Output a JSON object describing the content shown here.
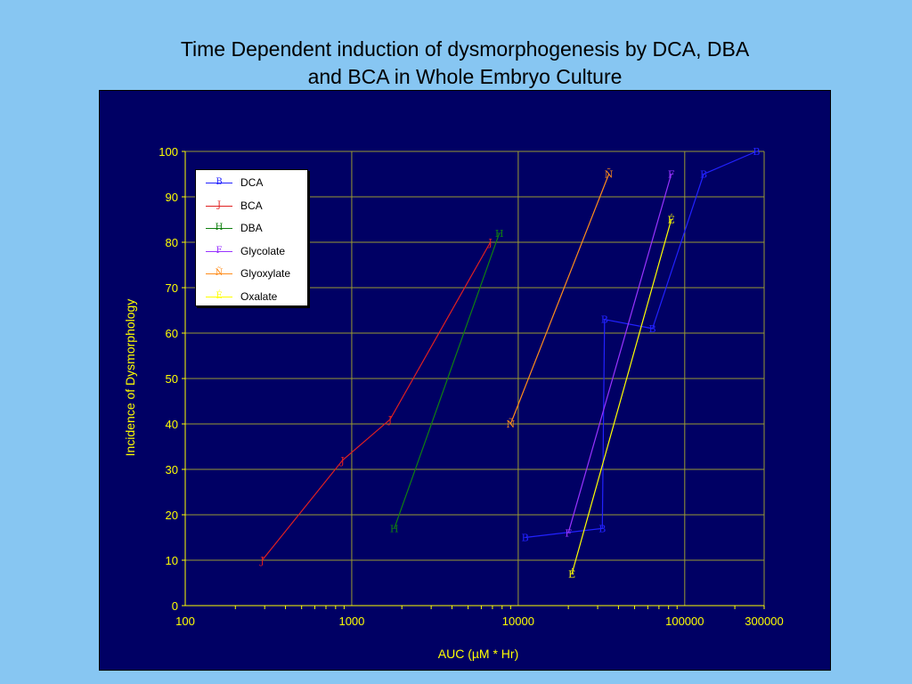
{
  "slide": {
    "title_line1": "Time Dependent induction of dysmorphogenesis by DCA, DBA",
    "title_line2": "and BCA in Whole Embryo Culture"
  },
  "chart_data": {
    "type": "line",
    "xscale": "log",
    "xlim": [
      100,
      300000
    ],
    "ylim": [
      0,
      100
    ],
    "xticks": [
      100,
      1000,
      10000,
      100000,
      300000
    ],
    "xtick_labels": [
      "100",
      "1000",
      "10000",
      "100000",
      "300000"
    ],
    "yticks": [
      0,
      10,
      20,
      30,
      40,
      50,
      60,
      70,
      80,
      90,
      100
    ],
    "ytick_labels": [
      "0",
      "10",
      "20",
      "30",
      "40",
      "50",
      "60",
      "70",
      "80",
      "90",
      "100"
    ],
    "xlabel": "AUC (µM * Hr)",
    "ylabel": "Incidence of Dysmorphology",
    "grid": true,
    "legend_position": "top-left",
    "series": [
      {
        "name": "DCA",
        "color": "#2222ff",
        "marker": "B",
        "x": [
          11000,
          32000,
          33000,
          64000,
          130000,
          270000
        ],
        "y": [
          15,
          17,
          63,
          61,
          95,
          100
        ]
      },
      {
        "name": "BCA",
        "color": "#e02020",
        "marker": "J",
        "x": [
          290,
          880,
          1700,
          6800
        ],
        "y": [
          10,
          32,
          41,
          80
        ]
      },
      {
        "name": "DBA",
        "color": "#108010",
        "marker": "H",
        "x": [
          1800,
          7700
        ],
        "y": [
          17,
          82
        ]
      },
      {
        "name": "Glycolate",
        "color": "#9933ff",
        "marker": "F",
        "x": [
          20000,
          83000
        ],
        "y": [
          16,
          95
        ]
      },
      {
        "name": "Glyoxylate",
        "color": "#ff8c1a",
        "marker": "Ñ",
        "x": [
          9000,
          35000
        ],
        "y": [
          40,
          95
        ]
      },
      {
        "name": "Oxalate",
        "color": "#ffff00",
        "marker": "É",
        "x": [
          21000,
          83000
        ],
        "y": [
          7,
          85
        ]
      }
    ]
  }
}
